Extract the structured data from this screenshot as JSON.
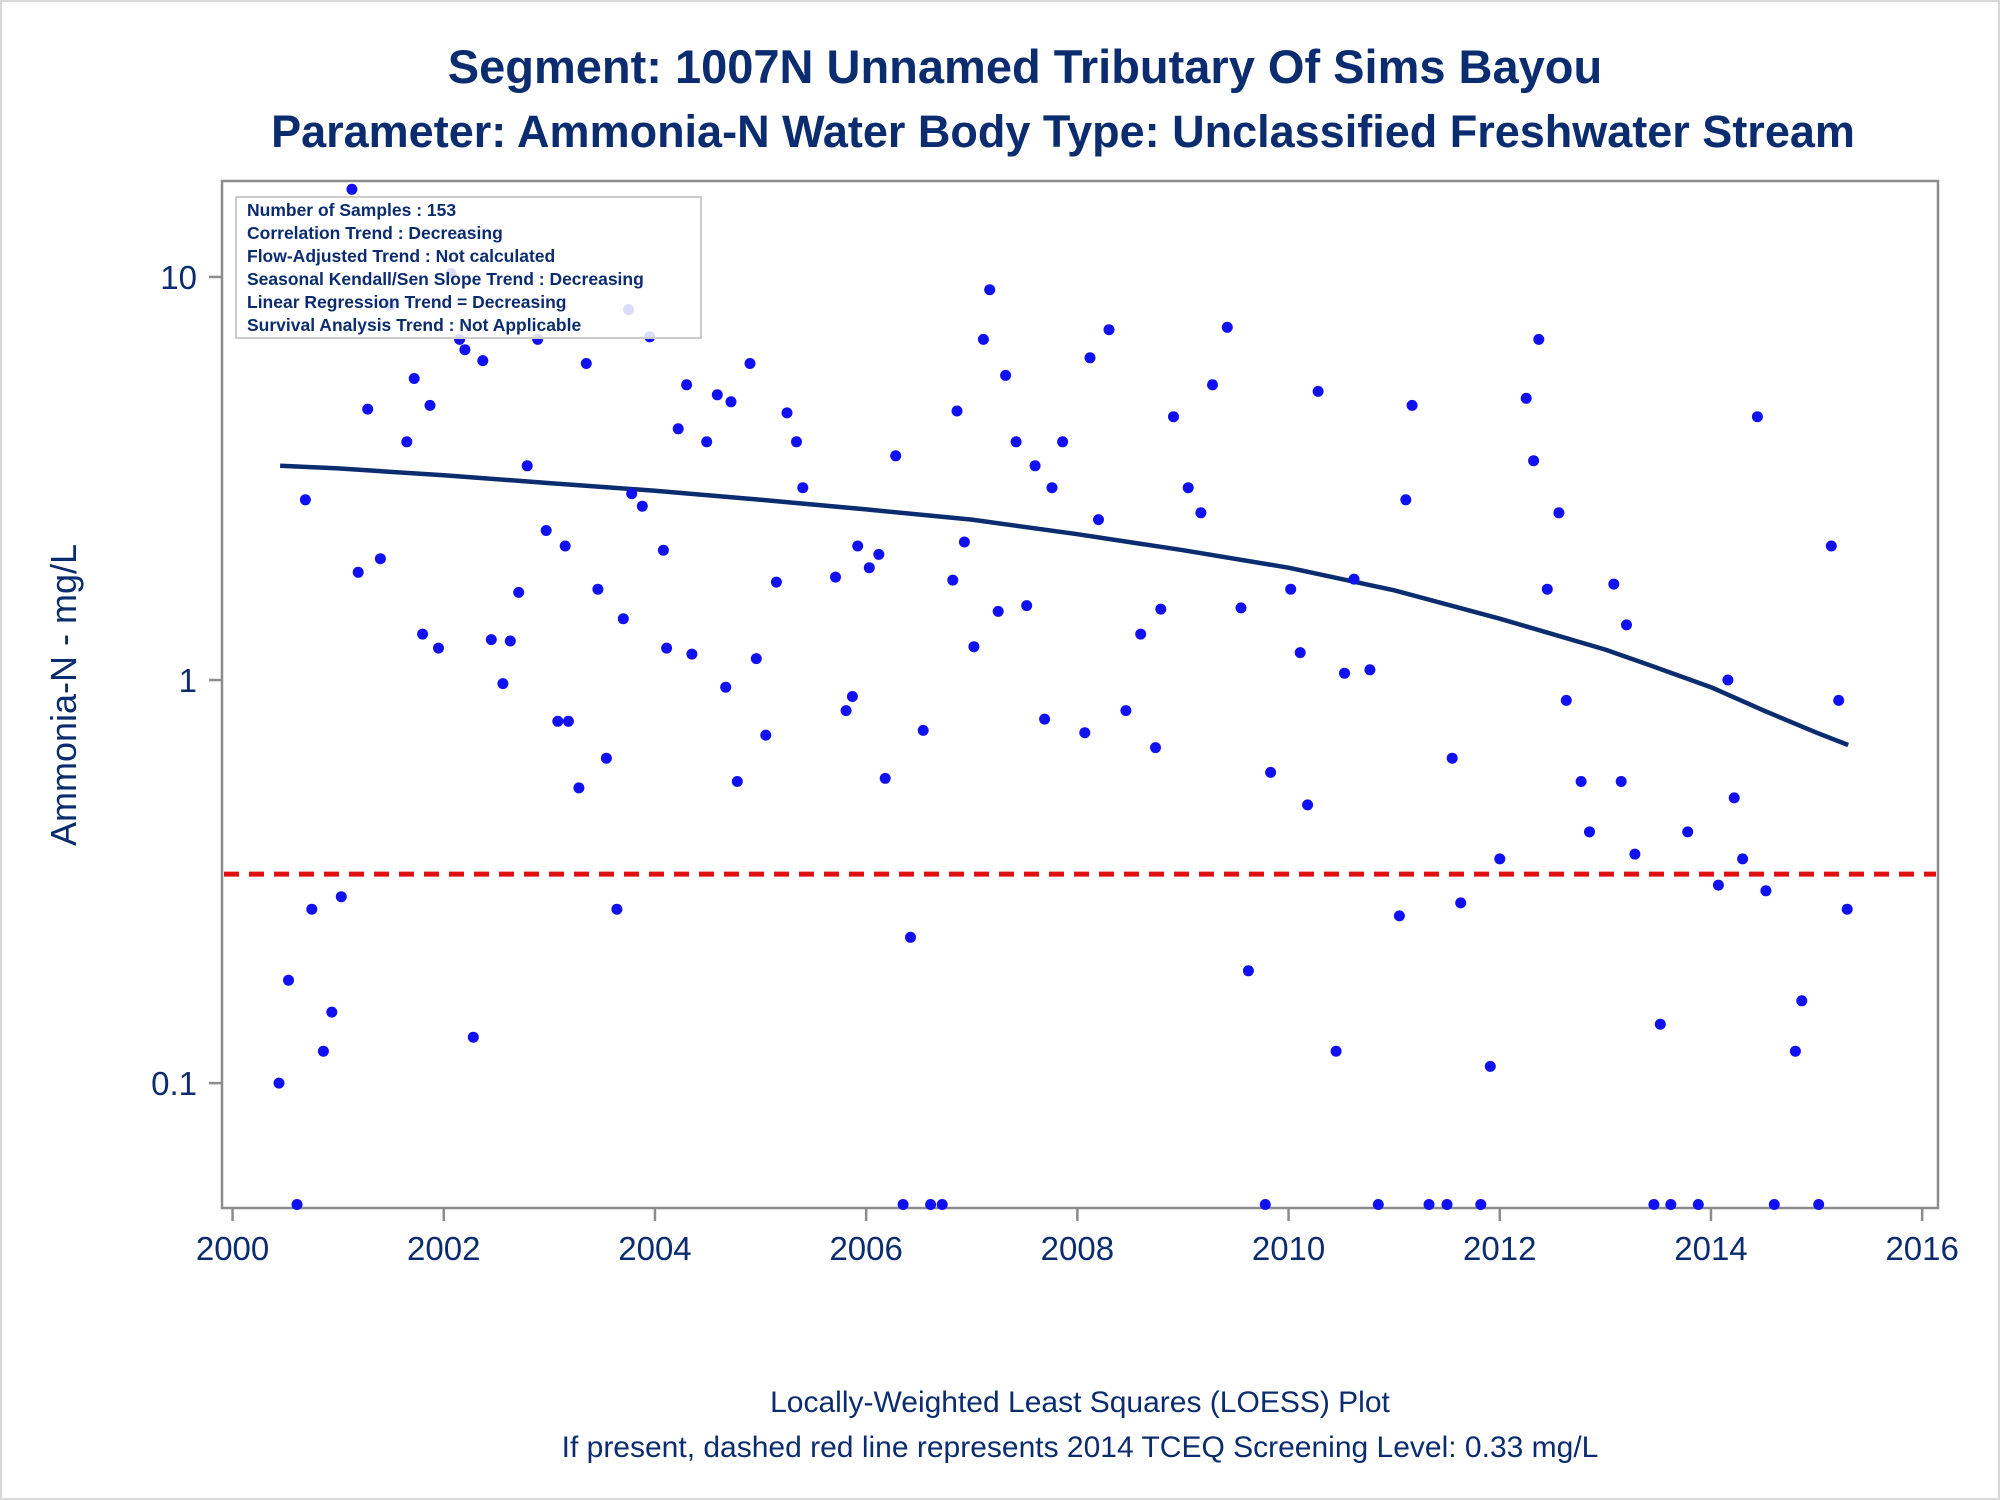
{
  "title_line1": "Segment: 1007N  Unnamed Tributary Of Sims Bayou",
  "title_line2": "Parameter: Ammonia-N   Water Body Type: Unclassified Freshwater Stream",
  "footnote_line1": "Locally-Weighted Least Squares (LOESS) Plot",
  "footnote_line2": "If present, dashed red line represents 2014 TCEQ Screening Level: 0.33 mg/L",
  "stats_box": [
    "Number of Samples : 153",
    "Correlation Trend : Decreasing",
    "Flow-Adjusted Trend : Not calculated",
    "Seasonal Kendall/Sen Slope Trend : Decreasing",
    "Linear Regression Trend = Decreasing",
    "Survival Analysis Trend : Not Applicable"
  ],
  "colors": {
    "text": "#0b2c6e",
    "points": "#1010f0",
    "loess": "#0b2c6e",
    "screening": "#e01010",
    "frame": "#8c8c8c"
  },
  "chart_data": {
    "type": "scatter",
    "title": "Segment: 1007N  Unnamed Tributary Of Sims Bayou",
    "subtitle": "Parameter: Ammonia-N   Water Body Type: Unclassified Freshwater Stream",
    "xlabel": "",
    "ylabel": "Ammonia-N - mg/L",
    "x_ticks": [
      "2000",
      "2002",
      "2004",
      "2006",
      "2008",
      "2010",
      "2012",
      "2014",
      "2016"
    ],
    "y_ticks": [
      "0.1",
      "1",
      "10"
    ],
    "y_scale": "log",
    "xlim": [
      1999.9,
      2016.15
    ],
    "ylim": [
      0.049,
      17.3
    ],
    "grid": false,
    "screening_level": 0.33,
    "points": [
      [
        2000.44,
        0.1
      ],
      [
        2000.53,
        0.18
      ],
      [
        2000.61,
        0.05
      ],
      [
        2000.69,
        2.8
      ],
      [
        2000.75,
        0.27
      ],
      [
        2000.86,
        0.12
      ],
      [
        2000.94,
        0.15
      ],
      [
        2001.03,
        0.29
      ],
      [
        2001.19,
        1.85
      ],
      [
        2001.28,
        4.7
      ],
      [
        2001.4,
        2.0
      ],
      [
        2001.49,
        8.5
      ],
      [
        2001.65,
        3.9
      ],
      [
        2001.72,
        5.6
      ],
      [
        2001.8,
        1.3
      ],
      [
        2001.87,
        4.8
      ],
      [
        2001.95,
        1.2
      ],
      [
        2002.07,
        10.2
      ],
      [
        2002.15,
        7.0
      ],
      [
        2002.2,
        6.6
      ],
      [
        2002.28,
        0.13
      ],
      [
        2002.37,
        6.2
      ],
      [
        2002.45,
        1.26
      ],
      [
        2002.56,
        0.98
      ],
      [
        2002.63,
        1.25
      ],
      [
        2002.71,
        1.65
      ],
      [
        2002.79,
        3.4
      ],
      [
        2002.89,
        7.0
      ],
      [
        2002.97,
        2.35
      ],
      [
        2003.08,
        0.79
      ],
      [
        2003.15,
        2.15
      ],
      [
        2003.18,
        0.79
      ],
      [
        2003.28,
        0.54
      ],
      [
        2003.35,
        6.1
      ],
      [
        2003.46,
        1.68
      ],
      [
        2003.54,
        0.64
      ],
      [
        2003.64,
        0.27
      ],
      [
        2003.7,
        1.42
      ],
      [
        2003.78,
        2.9
      ],
      [
        2003.88,
        2.7
      ],
      [
        2003.95,
        7.1
      ],
      [
        2004.08,
        2.1
      ],
      [
        2004.11,
        1.2
      ],
      [
        2004.22,
        4.2
      ],
      [
        2004.3,
        5.4
      ],
      [
        2004.35,
        1.16
      ],
      [
        2004.49,
        3.9
      ],
      [
        2004.59,
        5.1
      ],
      [
        2004.67,
        0.96
      ],
      [
        2004.72,
        4.9
      ],
      [
        2004.78,
        0.56
      ],
      [
        2004.9,
        6.1
      ],
      [
        2004.96,
        1.13
      ],
      [
        2005.05,
        0.73
      ],
      [
        2005.15,
        1.75
      ],
      [
        2005.25,
        4.6
      ],
      [
        2005.34,
        3.9
      ],
      [
        2005.4,
        3.0
      ],
      [
        2005.71,
        1.8
      ],
      [
        2005.81,
        0.84
      ],
      [
        2005.87,
        0.91
      ],
      [
        2005.92,
        2.15
      ],
      [
        2006.03,
        1.9
      ],
      [
        2006.12,
        2.05
      ],
      [
        2006.18,
        0.57
      ],
      [
        2006.28,
        3.6
      ],
      [
        2006.35,
        0.05
      ],
      [
        2006.42,
        0.23
      ],
      [
        2006.54,
        0.75
      ],
      [
        2006.61,
        0.05
      ],
      [
        2006.72,
        0.05
      ],
      [
        2006.82,
        1.77
      ],
      [
        2006.86,
        4.65
      ],
      [
        2006.93,
        2.2
      ],
      [
        2007.02,
        1.21
      ],
      [
        2007.11,
        7.0
      ],
      [
        2007.17,
        9.3
      ],
      [
        2007.25,
        1.48
      ],
      [
        2007.32,
        5.7
      ],
      [
        2007.42,
        3.9
      ],
      [
        2007.52,
        1.53
      ],
      [
        2007.6,
        3.4
      ],
      [
        2007.69,
        0.8
      ],
      [
        2007.76,
        3.0
      ],
      [
        2007.86,
        3.9
      ],
      [
        2008.07,
        0.74
      ],
      [
        2008.12,
        6.3
      ],
      [
        2008.2,
        2.5
      ],
      [
        2008.3,
        7.4
      ],
      [
        2008.46,
        0.84
      ],
      [
        2008.6,
        1.3
      ],
      [
        2008.74,
        0.68
      ],
      [
        2008.79,
        1.5
      ],
      [
        2008.91,
        4.5
      ],
      [
        2009.05,
        3.0
      ],
      [
        2009.17,
        2.6
      ],
      [
        2009.28,
        5.4
      ],
      [
        2009.42,
        7.5
      ],
      [
        2009.55,
        1.51
      ],
      [
        2009.62,
        0.19
      ],
      [
        2009.78,
        0.05
      ],
      [
        2009.83,
        0.59
      ],
      [
        2010.02,
        1.68
      ],
      [
        2010.11,
        1.17
      ],
      [
        2010.18,
        0.49
      ],
      [
        2010.28,
        5.2
      ],
      [
        2010.45,
        0.12
      ],
      [
        2010.53,
        1.04
      ],
      [
        2010.62,
        1.78
      ],
      [
        2010.77,
        1.06
      ],
      [
        2010.85,
        0.05
      ],
      [
        2011.05,
        0.26
      ],
      [
        2011.11,
        2.8
      ],
      [
        2011.17,
        4.8
      ],
      [
        2011.33,
        0.05
      ],
      [
        2011.5,
        0.05
      ],
      [
        2011.55,
        0.64
      ],
      [
        2011.63,
        0.28
      ],
      [
        2011.82,
        0.05
      ],
      [
        2011.91,
        0.11
      ],
      [
        2012.0,
        0.36
      ],
      [
        2012.25,
        5.0
      ],
      [
        2012.32,
        3.5
      ],
      [
        2012.37,
        7.0
      ],
      [
        2012.45,
        1.68
      ],
      [
        2012.56,
        2.6
      ],
      [
        2012.63,
        0.89
      ],
      [
        2012.77,
        0.56
      ],
      [
        2012.85,
        0.42
      ],
      [
        2013.08,
        1.73
      ],
      [
        2013.15,
        0.56
      ],
      [
        2013.2,
        1.37
      ],
      [
        2013.28,
        0.37
      ],
      [
        2013.46,
        0.05
      ],
      [
        2013.52,
        0.14
      ],
      [
        2013.62,
        0.05
      ],
      [
        2013.78,
        0.42
      ],
      [
        2013.88,
        0.05
      ],
      [
        2014.07,
        0.31
      ],
      [
        2014.16,
        1.0
      ],
      [
        2014.22,
        0.51
      ],
      [
        2014.3,
        0.36
      ],
      [
        2014.44,
        4.5
      ],
      [
        2014.52,
        0.3
      ],
      [
        2014.6,
        0.05
      ],
      [
        2014.8,
        0.12
      ],
      [
        2014.86,
        0.16
      ],
      [
        2015.02,
        0.05
      ],
      [
        2015.14,
        2.15
      ],
      [
        2015.21,
        0.89
      ],
      [
        2015.29,
        0.27
      ],
      [
        2001.13,
        16.5
      ],
      [
        2003.75,
        8.3
      ]
    ],
    "loess": [
      [
        2000.45,
        3.4
      ],
      [
        2001.0,
        3.35
      ],
      [
        2002.0,
        3.22
      ],
      [
        2003.0,
        3.08
      ],
      [
        2004.0,
        2.95
      ],
      [
        2005.0,
        2.8
      ],
      [
        2006.0,
        2.65
      ],
      [
        2007.0,
        2.5
      ],
      [
        2008.0,
        2.3
      ],
      [
        2009.0,
        2.1
      ],
      [
        2010.0,
        1.9
      ],
      [
        2011.0,
        1.67
      ],
      [
        2012.0,
        1.42
      ],
      [
        2013.0,
        1.19
      ],
      [
        2013.5,
        1.07
      ],
      [
        2014.0,
        0.96
      ],
      [
        2014.5,
        0.84
      ],
      [
        2015.0,
        0.74
      ],
      [
        2015.3,
        0.69
      ]
    ]
  }
}
